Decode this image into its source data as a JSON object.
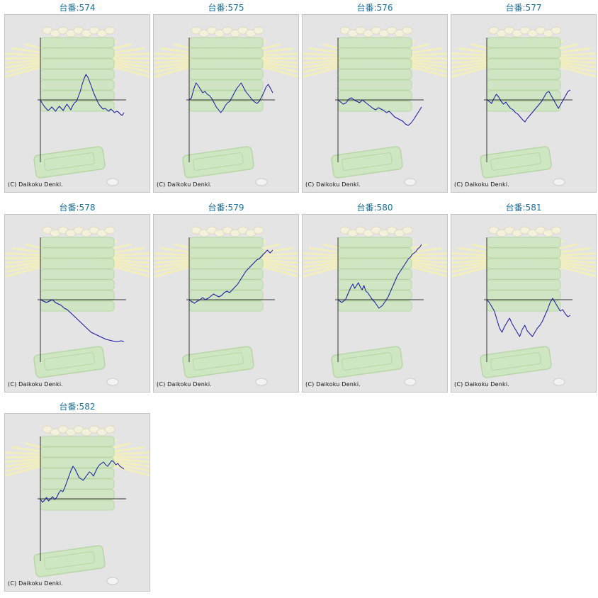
{
  "copyright": "(C) Daikoku Denki.",
  "title_prefix": "台番:",
  "colors": {
    "line": "#1414a8",
    "axis": "#333333",
    "title": "#1a6e9a",
    "background": "#e4e4e4"
  },
  "chart_data": [
    {
      "type": "line",
      "title": "台番:574",
      "machine": "574",
      "y": [
        0,
        -5,
        -9,
        -12,
        -15,
        -13,
        -10,
        -13,
        -16,
        -12,
        -9,
        -12,
        -15,
        -10,
        -6,
        -10,
        -14,
        -8,
        -4,
        -2,
        5,
        12,
        22,
        30,
        36,
        32,
        25,
        18,
        10,
        4,
        -2,
        -7,
        -10,
        -13,
        -12,
        -14,
        -16,
        -13,
        -15,
        -18,
        -16,
        -17,
        -20,
        -22,
        -18
      ]
    },
    {
      "type": "line",
      "title": "台番:575",
      "machine": "575",
      "y": [
        0,
        3,
        15,
        24,
        20,
        15,
        10,
        12,
        8,
        6,
        2,
        -4,
        -10,
        -14,
        -18,
        -14,
        -8,
        -4,
        -2,
        4,
        10,
        16,
        20,
        24,
        18,
        12,
        8,
        4,
        0,
        -3,
        -5,
        -2,
        4,
        10,
        18,
        22,
        16,
        10
      ]
    },
    {
      "type": "line",
      "title": "台番:576",
      "machine": "576",
      "y": [
        0,
        -3,
        -6,
        -4,
        1,
        3,
        0,
        -2,
        -4,
        0,
        -3,
        -6,
        -9,
        -12,
        -14,
        -11,
        -13,
        -15,
        -18,
        -16,
        -20,
        -24,
        -26,
        -28,
        -30,
        -34,
        -36,
        -33,
        -28,
        -22,
        -16,
        -10
      ]
    },
    {
      "type": "line",
      "title": "台番:577",
      "machine": "577",
      "y": [
        0,
        -2,
        -5,
        2,
        8,
        4,
        -2,
        -6,
        -3,
        -8,
        -12,
        -14,
        -18,
        -20,
        -24,
        -28,
        -31,
        -26,
        -22,
        -18,
        -14,
        -10,
        -6,
        -2,
        4,
        10,
        12,
        6,
        0,
        -6,
        -12,
        -6,
        0,
        6,
        12,
        14
      ]
    },
    {
      "type": "line",
      "title": "台番:578",
      "machine": "578",
      "y": [
        0,
        -2,
        -4,
        -2,
        0,
        -4,
        -6,
        -8,
        -12,
        -14,
        -18,
        -22,
        -26,
        -30,
        -34,
        -38,
        -42,
        -46,
        -48,
        -50,
        -52,
        -54,
        -56,
        -57,
        -58,
        -59,
        -59,
        -58,
        -59
      ]
    },
    {
      "type": "line",
      "title": "台番:579",
      "machine": "579",
      "y": [
        0,
        -3,
        -5,
        -2,
        0,
        3,
        0,
        2,
        5,
        8,
        6,
        4,
        6,
        10,
        12,
        10,
        14,
        18,
        22,
        28,
        34,
        40,
        44,
        48,
        52,
        56,
        58,
        62,
        66,
        70,
        66,
        70
      ]
    },
    {
      "type": "line",
      "title": "台番:580",
      "machine": "580",
      "y": [
        0,
        -2,
        -4,
        -2,
        0,
        6,
        12,
        18,
        22,
        16,
        20,
        24,
        18,
        14,
        20,
        12,
        10,
        6,
        2,
        -1,
        -4,
        -8,
        -12,
        -10,
        -8,
        -4,
        0,
        4,
        10,
        16,
        22,
        28,
        34,
        38,
        42,
        46,
        50,
        54,
        58,
        60,
        64,
        66,
        68,
        72,
        74,
        78
      ]
    },
    {
      "type": "line",
      "title": "台番:581",
      "machine": "581",
      "y": [
        0,
        -4,
        -10,
        -16,
        -28,
        -40,
        -46,
        -38,
        -32,
        -26,
        -34,
        -40,
        -46,
        -52,
        -42,
        -36,
        -44,
        -48,
        -52,
        -46,
        -40,
        -36,
        -30,
        -22,
        -14,
        -4,
        2,
        -4,
        -10,
        -16,
        -14,
        -20,
        -24,
        -22
      ]
    },
    {
      "type": "line",
      "title": "台番:582",
      "machine": "582",
      "y": [
        0,
        -5,
        -2,
        2,
        -3,
        0,
        3,
        -1,
        2,
        8,
        12,
        10,
        16,
        24,
        32,
        40,
        46,
        42,
        36,
        30,
        28,
        26,
        30,
        34,
        38,
        36,
        32,
        38,
        44,
        48,
        50,
        52,
        48,
        46,
        50,
        54,
        52,
        48,
        50,
        46,
        44,
        42
      ]
    }
  ]
}
